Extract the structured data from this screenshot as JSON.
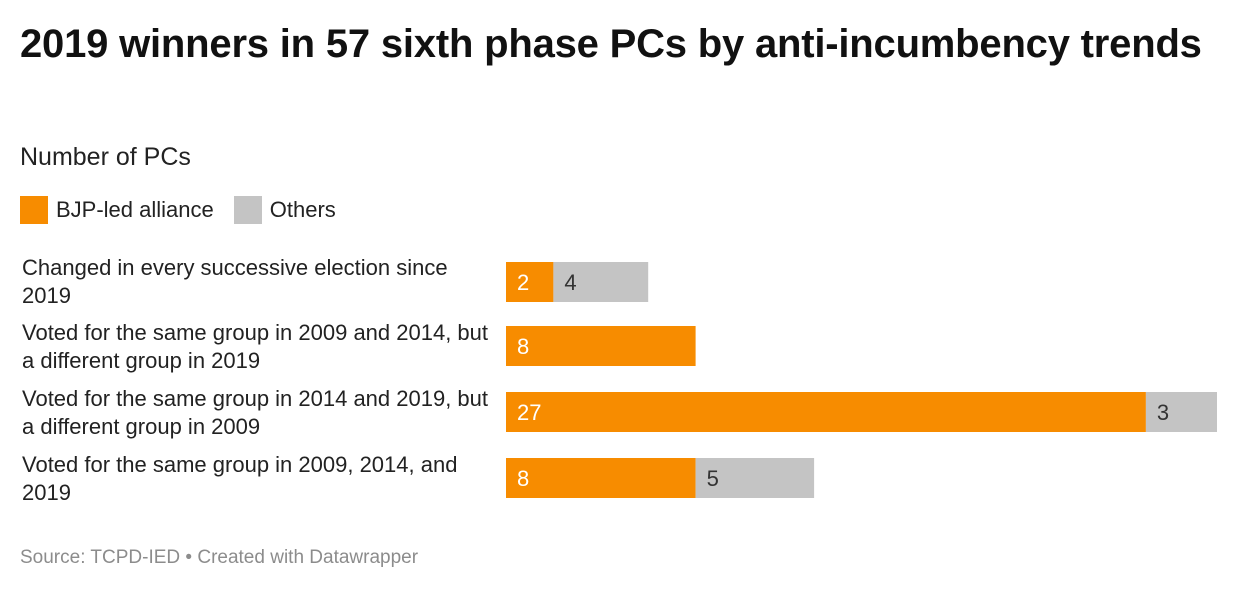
{
  "title": "2019 winners in 57 sixth phase PCs by anti-incumbency trends",
  "subtitle": "Number of PCs",
  "source": "Source: TCPD-IED • Created with Datawrapper",
  "colors": {
    "bjp": "#f78c00",
    "others": "#c4c4c4",
    "label_on_bjp": "#ffffff",
    "label_on_others": "#333333"
  },
  "chart_data": {
    "type": "bar",
    "orientation": "horizontal",
    "stacked": true,
    "title": "2019 winners in 57 sixth phase PCs by anti-incumbency trends",
    "subtitle": "Number of PCs",
    "legend_position": "top-left",
    "grid": false,
    "categories": [
      "Changed in every successive election since 2019",
      "Voted for the same group in 2009 and 2014, but a different group in 2019",
      "Voted for the same group in 2014 and 2019, but a different group in 2009",
      "Voted for the same group in 2009, 2014, and 2019"
    ],
    "series": [
      {
        "name": "BJP-led alliance",
        "values": [
          2,
          8,
          27,
          8
        ]
      },
      {
        "name": "Others",
        "values": [
          4,
          null,
          3,
          5
        ]
      }
    ],
    "xlim": [
      0,
      30
    ]
  }
}
